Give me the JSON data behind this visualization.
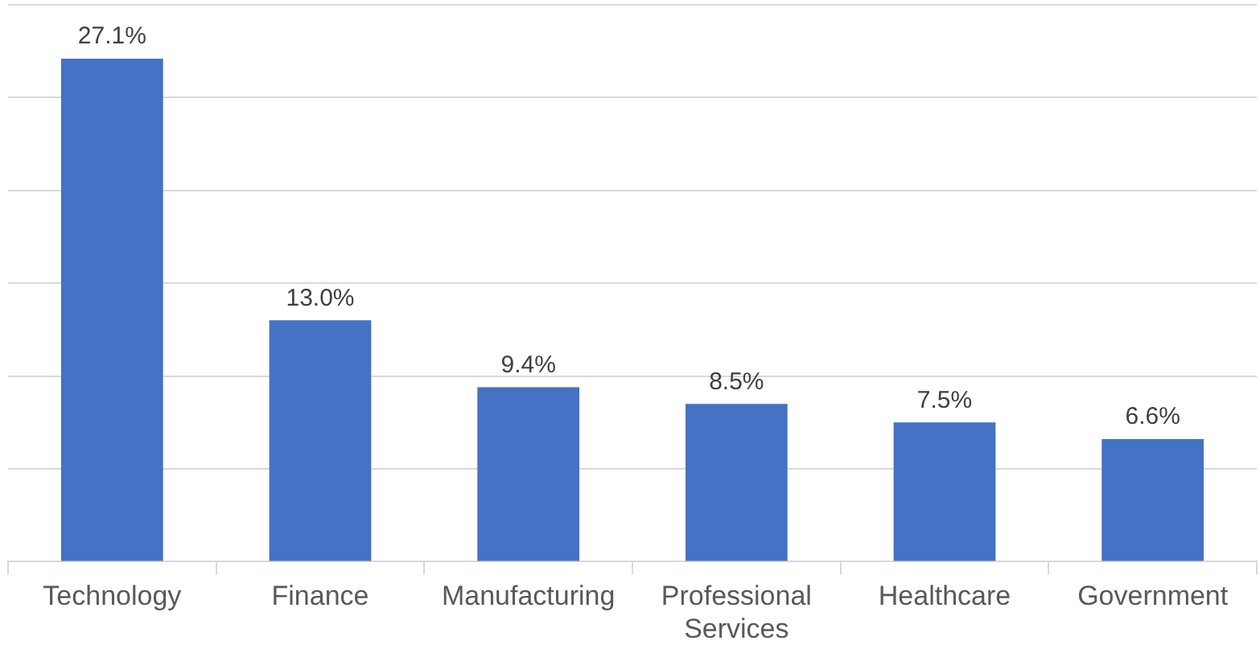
{
  "chart_data": {
    "type": "bar",
    "categories": [
      "Technology",
      "Finance",
      "Manufacturing",
      "Professional Services",
      "Healthcare",
      "Government"
    ],
    "values": [
      27.1,
      13.0,
      9.4,
      8.5,
      7.5,
      6.6
    ],
    "value_labels": [
      "27.1%",
      "13.0%",
      "9.4%",
      "8.5%",
      "7.5%",
      "6.6%"
    ],
    "color": "#4472c4",
    "ylim": [
      0,
      30
    ],
    "yticks": [
      {
        "value": 0,
        "label": null
      },
      {
        "value": 5,
        "label": null
      },
      {
        "value": 10,
        "label": null
      },
      {
        "value": 15,
        "label": null
      },
      {
        "value": 20,
        "label": null
      },
      {
        "value": 25,
        "label": null
      },
      {
        "value": 30,
        "label": null
      }
    ],
    "grid": "y",
    "tick_labels": "x"
  }
}
